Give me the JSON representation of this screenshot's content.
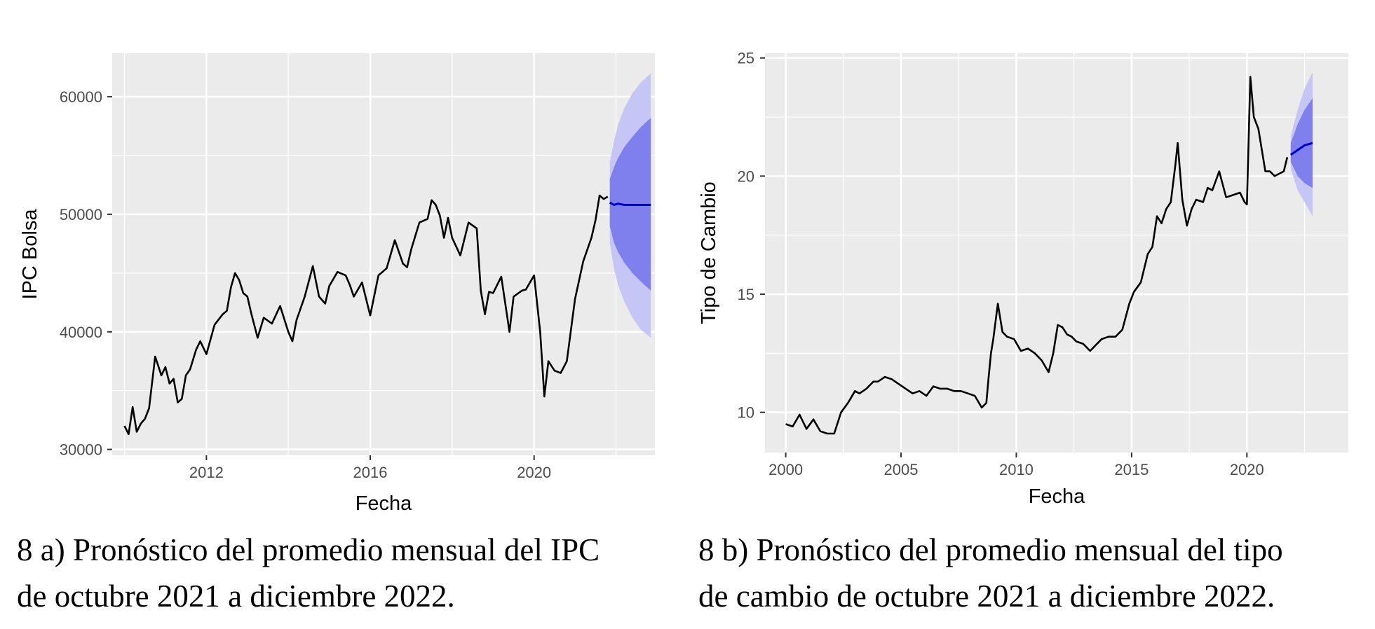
{
  "colors": {
    "panel_background": "#EBEBEB",
    "grid": "#FFFFFF",
    "series_line": "#000000",
    "forecast_line": "#0000CC",
    "interval_80": "#7F7FEE",
    "interval_95": "#C6C6F6"
  },
  "captions": {
    "a": "8 a) Pronóstico del promedio mensual del IPC\nde octubre 2021 a diciembre 2022.",
    "b": "8 b) Pronóstico del promedio mensual del tipo\nde cambio de octubre 2021 a diciembre 2022."
  },
  "chart_data": [
    {
      "type": "line",
      "title": "",
      "xlabel": "Fecha",
      "ylabel": "IPC Bolsa",
      "xlim": [
        2009.7,
        2022.95
      ],
      "ylim": [
        29500,
        63700
      ],
      "x_ticks": [
        2012,
        2016,
        2020
      ],
      "x_tick_labels": [
        "2012",
        "2016",
        "2020"
      ],
      "y_ticks": [
        30000,
        40000,
        50000,
        60000
      ],
      "y_tick_labels": [
        "30000",
        "40000",
        "50000",
        "60000"
      ],
      "grid": true,
      "legend": "none",
      "series": [
        {
          "role": "observed",
          "x": [
            2010.0,
            2010.1,
            2010.2,
            2010.3,
            2010.4,
            2010.5,
            2010.6,
            2010.75,
            2010.9,
            2011.0,
            2011.1,
            2011.2,
            2011.3,
            2011.4,
            2011.5,
            2011.6,
            2011.75,
            2011.85,
            2012.0,
            2012.2,
            2012.4,
            2012.5,
            2012.6,
            2012.7,
            2012.8,
            2012.9,
            2013.0,
            2013.1,
            2013.25,
            2013.4,
            2013.6,
            2013.8,
            2014.0,
            2014.1,
            2014.2,
            2014.4,
            2014.6,
            2014.75,
            2014.9,
            2015.0,
            2015.2,
            2015.4,
            2015.5,
            2015.6,
            2015.8,
            2016.0,
            2016.2,
            2016.4,
            2016.6,
            2016.8,
            2016.9,
            2017.0,
            2017.2,
            2017.4,
            2017.5,
            2017.6,
            2017.7,
            2017.8,
            2017.9,
            2018.0,
            2018.2,
            2018.4,
            2018.6,
            2018.7,
            2018.8,
            2018.9,
            2019.0,
            2019.2,
            2019.4,
            2019.5,
            2019.7,
            2019.8,
            2020.0,
            2020.15,
            2020.25,
            2020.35,
            2020.5,
            2020.65,
            2020.8,
            2021.0,
            2021.2,
            2021.4,
            2021.5,
            2021.6,
            2021.7,
            2021.8
          ],
          "values": [
            32000,
            31300,
            33600,
            31500,
            32200,
            32600,
            33500,
            37900,
            36300,
            37000,
            35600,
            36000,
            34000,
            34300,
            36300,
            36800,
            38500,
            39200,
            38100,
            40600,
            41500,
            41800,
            43800,
            45000,
            44400,
            43300,
            43000,
            41500,
            39500,
            41200,
            40700,
            42200,
            40000,
            39200,
            41000,
            43000,
            45600,
            43000,
            42400,
            43900,
            45100,
            44800,
            44000,
            43000,
            44200,
            41400,
            44800,
            45400,
            47800,
            45800,
            45500,
            47000,
            49300,
            49600,
            51200,
            50800,
            49900,
            48000,
            49700,
            48000,
            46500,
            49300,
            48800,
            43500,
            41500,
            43400,
            43300,
            44700,
            40000,
            43000,
            43500,
            43600,
            44800,
            40000,
            34500,
            37500,
            36700,
            36500,
            37500,
            42800,
            46000,
            48000,
            49500,
            51600,
            51300,
            51500
          ]
        },
        {
          "role": "forecast",
          "x": [
            2021.85,
            2021.95,
            2022.05,
            2022.2,
            2022.4,
            2022.6,
            2022.85
          ],
          "values": [
            51000,
            50800,
            50900,
            50800,
            50800,
            50800,
            50800
          ],
          "lower_80": [
            49000,
            47600,
            46800,
            45900,
            45000,
            44300,
            43500
          ],
          "upper_80": [
            53000,
            54000,
            54800,
            55700,
            56600,
            57400,
            58200
          ],
          "lower_95": [
            47500,
            45400,
            44000,
            42600,
            41200,
            40200,
            39500
          ],
          "upper_95": [
            54500,
            56200,
            57600,
            59000,
            60300,
            61200,
            62000
          ]
        }
      ]
    },
    {
      "type": "line",
      "title": "",
      "xlabel": "Fecha",
      "ylabel": "Tipo de Cambio",
      "xlim": [
        1999.1,
        2024.4
      ],
      "ylim": [
        8.3,
        25.2
      ],
      "x_ticks": [
        2000,
        2005,
        2010,
        2015,
        2020
      ],
      "x_tick_labels": [
        "2000",
        "2005",
        "2010",
        "2015",
        "2020"
      ],
      "y_ticks": [
        10,
        15,
        20,
        25
      ],
      "y_tick_labels": [
        "10",
        "15",
        "20",
        "25"
      ],
      "grid": true,
      "legend": "none",
      "series": [
        {
          "role": "observed",
          "x": [
            2000.0,
            2000.3,
            2000.6,
            2000.9,
            2001.2,
            2001.5,
            2001.8,
            2002.1,
            2002.4,
            2002.7,
            2003.0,
            2003.2,
            2003.5,
            2003.8,
            2004.0,
            2004.3,
            2004.6,
            2004.9,
            2005.2,
            2005.5,
            2005.8,
            2006.1,
            2006.4,
            2006.7,
            2007.0,
            2007.3,
            2007.6,
            2007.9,
            2008.2,
            2008.5,
            2008.7,
            2008.8,
            2008.9,
            2009.0,
            2009.2,
            2009.4,
            2009.6,
            2009.9,
            2010.2,
            2010.5,
            2010.8,
            2011.1,
            2011.4,
            2011.6,
            2011.8,
            2012.0,
            2012.2,
            2012.4,
            2012.6,
            2012.9,
            2013.2,
            2013.4,
            2013.7,
            2014.0,
            2014.3,
            2014.6,
            2014.9,
            2015.1,
            2015.4,
            2015.7,
            2015.9,
            2016.1,
            2016.3,
            2016.5,
            2016.7,
            2016.9,
            2017.0,
            2017.2,
            2017.4,
            2017.6,
            2017.8,
            2018.1,
            2018.3,
            2018.5,
            2018.8,
            2019.1,
            2019.4,
            2019.7,
            2019.9,
            2020.0,
            2020.15,
            2020.3,
            2020.5,
            2020.8,
            2021.0,
            2021.2,
            2021.4,
            2021.6,
            2021.75
          ],
          "values": [
            9.5,
            9.4,
            9.9,
            9.3,
            9.7,
            9.2,
            9.1,
            9.1,
            10.0,
            10.4,
            10.9,
            10.8,
            11.0,
            11.3,
            11.3,
            11.5,
            11.4,
            11.2,
            11.0,
            10.8,
            10.9,
            10.7,
            11.1,
            11.0,
            11.0,
            10.9,
            10.9,
            10.8,
            10.7,
            10.2,
            10.4,
            11.5,
            12.5,
            13.1,
            14.6,
            13.4,
            13.2,
            13.1,
            12.6,
            12.7,
            12.5,
            12.2,
            11.7,
            12.5,
            13.7,
            13.6,
            13.3,
            13.2,
            13.0,
            12.9,
            12.6,
            12.8,
            13.1,
            13.2,
            13.2,
            13.5,
            14.6,
            15.1,
            15.5,
            16.7,
            17.0,
            18.3,
            18.0,
            18.6,
            18.9,
            20.5,
            21.4,
            19.0,
            17.9,
            18.6,
            19.0,
            18.9,
            19.5,
            19.4,
            20.2,
            19.1,
            19.2,
            19.3,
            18.9,
            18.8,
            24.2,
            22.5,
            22.0,
            20.2,
            20.2,
            20.0,
            20.1,
            20.2,
            20.8
          ],
          "x_extra": [],
          "values_extra": []
        },
        {
          "role": "forecast",
          "x": [
            2021.9,
            2022.2,
            2022.5,
            2022.85
          ],
          "values": [
            20.9,
            21.1,
            21.3,
            21.4
          ],
          "lower_80": [
            20.6,
            20.0,
            19.7,
            19.5
          ],
          "upper_80": [
            21.4,
            22.2,
            22.8,
            23.3
          ],
          "lower_95": [
            20.3,
            19.4,
            18.9,
            18.3
          ],
          "upper_95": [
            21.7,
            22.8,
            23.7,
            24.4
          ]
        }
      ]
    }
  ]
}
